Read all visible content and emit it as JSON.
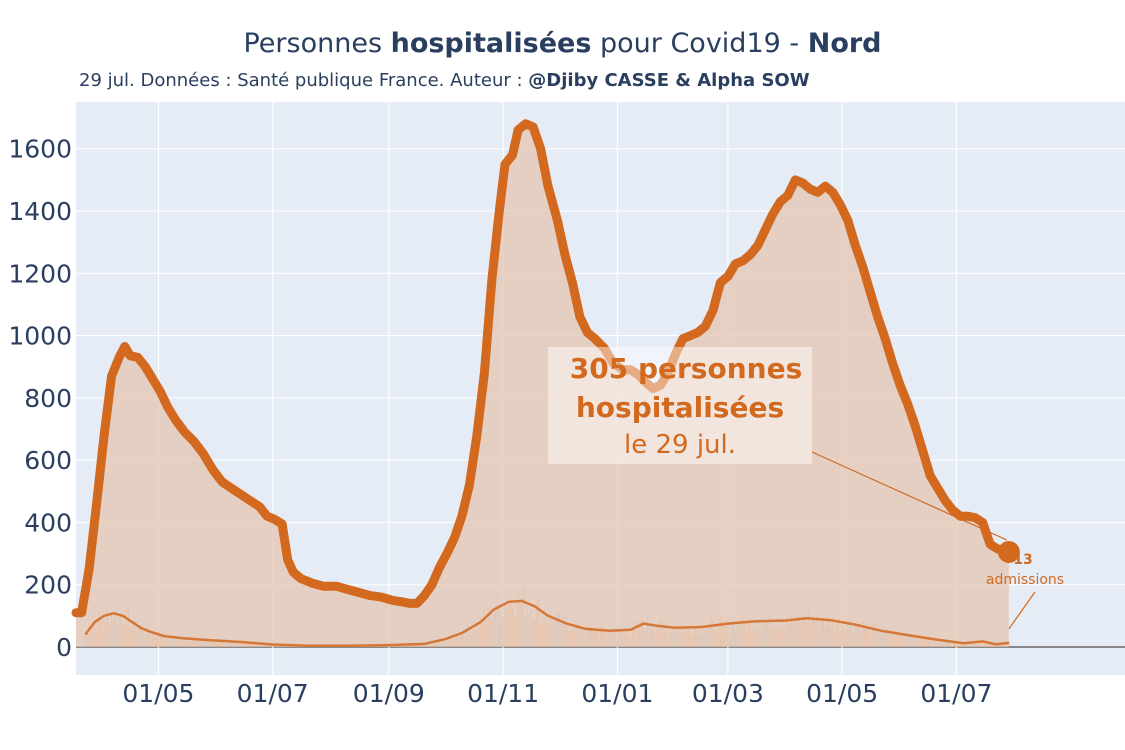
{
  "title": {
    "part1": "Personnes ",
    "bold1": "hospitalisées",
    "part2": " pour Covid19 - ",
    "bold2": "Nord"
  },
  "subtitle": {
    "text": "29 jul. Données : Santé publique France. Auteur : ",
    "bold": "@Djiby CASSE & Alpha SOW"
  },
  "colors": {
    "line": "#d2691e",
    "fill": "#e4c4ad",
    "plot_bg": "#e5ecf6",
    "grid": "#ffffff",
    "text": "#2a3f5f",
    "zero_line": "#888888"
  },
  "annotation": {
    "line1": "305 personnes",
    "line2": "hospitalisées",
    "line3": "le 29 jul."
  },
  "admissions_label": {
    "value": "13",
    "label": "admissions"
  },
  "chart_data": {
    "type": "area",
    "x_type": "date",
    "xlim": [
      "2020-03-18",
      "2021-09-29"
    ],
    "ylim": [
      -90,
      1750
    ],
    "y_ticks": [
      0,
      200,
      400,
      600,
      800,
      1000,
      1200,
      1400,
      1600
    ],
    "x_ticks": [
      {
        "date": "2020-05-01",
        "label": "01/05"
      },
      {
        "date": "2020-07-01",
        "label": "01/07"
      },
      {
        "date": "2020-09-01",
        "label": "01/09"
      },
      {
        "date": "2020-11-01",
        "label": "01/11"
      },
      {
        "date": "2021-01-01",
        "label": "01/01"
      },
      {
        "date": "2021-03-01",
        "label": "01/03"
      },
      {
        "date": "2021-05-01",
        "label": "01/05"
      },
      {
        "date": "2021-07-01",
        "label": "01/07"
      }
    ],
    "grid": true,
    "series": [
      {
        "kind": "hospitalized",
        "points": [
          [
            "2020-03-18",
            110
          ],
          [
            "2020-03-21",
            110
          ],
          [
            "2020-03-25",
            250
          ],
          [
            "2020-03-29",
            460
          ],
          [
            "2020-04-02",
            680
          ],
          [
            "2020-04-06",
            870
          ],
          [
            "2020-04-10",
            930
          ],
          [
            "2020-04-13",
            965
          ],
          [
            "2020-04-16",
            935
          ],
          [
            "2020-04-20",
            930
          ],
          [
            "2020-04-24",
            900
          ],
          [
            "2020-04-28",
            860
          ],
          [
            "2020-05-02",
            820
          ],
          [
            "2020-05-06",
            770
          ],
          [
            "2020-05-10",
            730
          ],
          [
            "2020-05-15",
            690
          ],
          [
            "2020-05-20",
            660
          ],
          [
            "2020-05-25",
            620
          ],
          [
            "2020-05-30",
            570
          ],
          [
            "2020-06-04",
            530
          ],
          [
            "2020-06-09",
            510
          ],
          [
            "2020-06-14",
            490
          ],
          [
            "2020-06-19",
            470
          ],
          [
            "2020-06-24",
            450
          ],
          [
            "2020-06-28",
            420
          ],
          [
            "2020-07-02",
            410
          ],
          [
            "2020-07-06",
            395
          ],
          [
            "2020-07-09",
            280
          ],
          [
            "2020-07-12",
            240
          ],
          [
            "2020-07-16",
            220
          ],
          [
            "2020-07-22",
            205
          ],
          [
            "2020-07-28",
            195
          ],
          [
            "2020-08-04",
            195
          ],
          [
            "2020-08-10",
            185
          ],
          [
            "2020-08-16",
            175
          ],
          [
            "2020-08-22",
            165
          ],
          [
            "2020-08-28",
            160
          ],
          [
            "2020-09-03",
            150
          ],
          [
            "2020-09-08",
            145
          ],
          [
            "2020-09-12",
            140
          ],
          [
            "2020-09-16",
            140
          ],
          [
            "2020-09-20",
            165
          ],
          [
            "2020-09-24",
            200
          ],
          [
            "2020-09-28",
            255
          ],
          [
            "2020-10-02",
            300
          ],
          [
            "2020-10-06",
            350
          ],
          [
            "2020-10-10",
            420
          ],
          [
            "2020-10-14",
            520
          ],
          [
            "2020-10-18",
            680
          ],
          [
            "2020-10-22",
            880
          ],
          [
            "2020-10-26",
            1180
          ],
          [
            "2020-10-30",
            1400
          ],
          [
            "2020-11-02",
            1550
          ],
          [
            "2020-11-06",
            1580
          ],
          [
            "2020-11-09",
            1660
          ],
          [
            "2020-11-13",
            1680
          ],
          [
            "2020-11-17",
            1670
          ],
          [
            "2020-11-21",
            1600
          ],
          [
            "2020-11-25",
            1480
          ],
          [
            "2020-11-30",
            1370
          ],
          [
            "2020-12-04",
            1260
          ],
          [
            "2020-12-08",
            1170
          ],
          [
            "2020-12-12",
            1060
          ],
          [
            "2020-12-16",
            1010
          ],
          [
            "2020-12-20",
            990
          ],
          [
            "2020-12-25",
            960
          ],
          [
            "2020-12-30",
            910
          ],
          [
            "2021-01-04",
            890
          ],
          [
            "2021-01-08",
            890
          ],
          [
            "2021-01-12",
            875
          ],
          [
            "2021-01-16",
            850
          ],
          [
            "2021-01-20",
            830
          ],
          [
            "2021-01-24",
            840
          ],
          [
            "2021-01-28",
            880
          ],
          [
            "2021-02-01",
            940
          ],
          [
            "2021-02-05",
            990
          ],
          [
            "2021-02-09",
            1000
          ],
          [
            "2021-02-13",
            1010
          ],
          [
            "2021-02-17",
            1030
          ],
          [
            "2021-02-21",
            1080
          ],
          [
            "2021-02-25",
            1170
          ],
          [
            "2021-03-01",
            1190
          ],
          [
            "2021-03-05",
            1230
          ],
          [
            "2021-03-09",
            1240
          ],
          [
            "2021-03-13",
            1260
          ],
          [
            "2021-03-17",
            1290
          ],
          [
            "2021-03-21",
            1340
          ],
          [
            "2021-03-25",
            1390
          ],
          [
            "2021-03-29",
            1430
          ],
          [
            "2021-04-02",
            1450
          ],
          [
            "2021-04-06",
            1500
          ],
          [
            "2021-04-10",
            1490
          ],
          [
            "2021-04-14",
            1470
          ],
          [
            "2021-04-18",
            1460
          ],
          [
            "2021-04-22",
            1480
          ],
          [
            "2021-04-26",
            1460
          ],
          [
            "2021-04-30",
            1420
          ],
          [
            "2021-05-04",
            1370
          ],
          [
            "2021-05-08",
            1290
          ],
          [
            "2021-05-12",
            1220
          ],
          [
            "2021-05-16",
            1140
          ],
          [
            "2021-05-20",
            1060
          ],
          [
            "2021-05-24",
            990
          ],
          [
            "2021-05-28",
            910
          ],
          [
            "2021-06-01",
            840
          ],
          [
            "2021-06-05",
            780
          ],
          [
            "2021-06-09",
            710
          ],
          [
            "2021-06-13",
            630
          ],
          [
            "2021-06-17",
            550
          ],
          [
            "2021-06-21",
            510
          ],
          [
            "2021-06-25",
            470
          ],
          [
            "2021-06-29",
            440
          ],
          [
            "2021-07-03",
            420
          ],
          [
            "2021-07-07",
            420
          ],
          [
            "2021-07-11",
            415
          ],
          [
            "2021-07-15",
            400
          ],
          [
            "2021-07-19",
            330
          ],
          [
            "2021-07-23",
            315
          ],
          [
            "2021-07-29",
            305
          ]
        ]
      },
      {
        "kind": "admissions",
        "points": [
          [
            "2020-03-23",
            40
          ],
          [
            "2020-03-28",
            80
          ],
          [
            "2020-04-02",
            100
          ],
          [
            "2020-04-07",
            108
          ],
          [
            "2020-04-12",
            100
          ],
          [
            "2020-04-17",
            80
          ],
          [
            "2020-04-22",
            60
          ],
          [
            "2020-04-27",
            48
          ],
          [
            "2020-05-04",
            35
          ],
          [
            "2020-05-14",
            28
          ],
          [
            "2020-05-28",
            22
          ],
          [
            "2020-06-14",
            16
          ],
          [
            "2020-07-01",
            8
          ],
          [
            "2020-07-20",
            4
          ],
          [
            "2020-08-10",
            4
          ],
          [
            "2020-09-01",
            6
          ],
          [
            "2020-09-20",
            10
          ],
          [
            "2020-10-01",
            25
          ],
          [
            "2020-10-10",
            45
          ],
          [
            "2020-10-20",
            80
          ],
          [
            "2020-10-27",
            120
          ],
          [
            "2020-11-04",
            145
          ],
          [
            "2020-11-11",
            148
          ],
          [
            "2020-11-18",
            130
          ],
          [
            "2020-11-25",
            100
          ],
          [
            "2020-12-05",
            75
          ],
          [
            "2020-12-15",
            58
          ],
          [
            "2020-12-28",
            52
          ],
          [
            "2021-01-08",
            55
          ],
          [
            "2021-01-15",
            75
          ],
          [
            "2021-01-22",
            68
          ],
          [
            "2021-02-01",
            62
          ],
          [
            "2021-02-15",
            64
          ],
          [
            "2021-03-01",
            75
          ],
          [
            "2021-03-15",
            82
          ],
          [
            "2021-04-01",
            85
          ],
          [
            "2021-04-12",
            92
          ],
          [
            "2021-04-25",
            86
          ],
          [
            "2021-05-08",
            72
          ],
          [
            "2021-05-22",
            52
          ],
          [
            "2021-06-05",
            38
          ],
          [
            "2021-06-20",
            24
          ],
          [
            "2021-07-05",
            12
          ],
          [
            "2021-07-15",
            18
          ],
          [
            "2021-07-22",
            9
          ],
          [
            "2021-07-29",
            13
          ]
        ]
      }
    ]
  }
}
